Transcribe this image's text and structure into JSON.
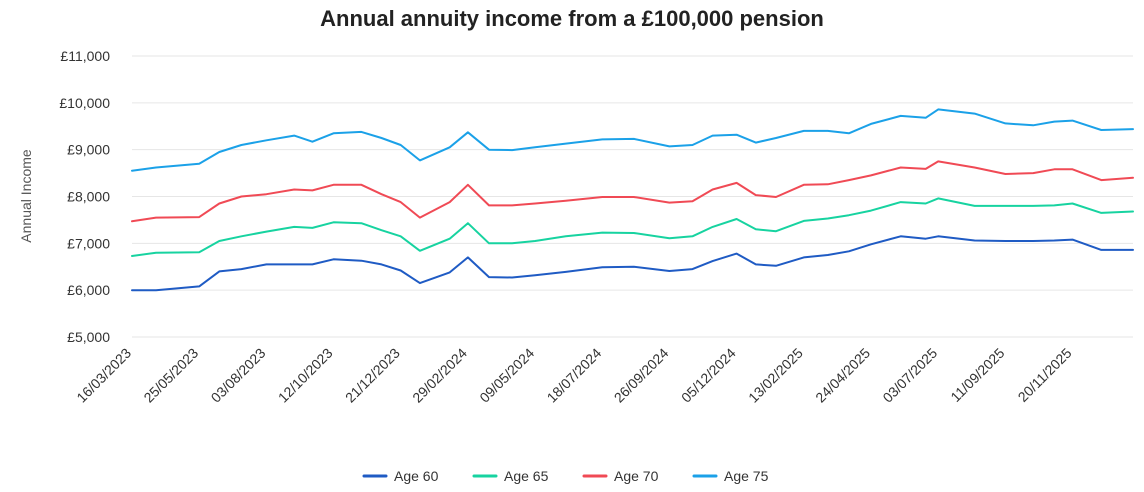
{
  "chart_data": {
    "type": "line",
    "title": "Annual annuity income from a £100,000 pension",
    "ylabel": "Annual Income",
    "xlabel": "",
    "ylim": [
      5000,
      11000
    ],
    "yticks": [
      5000,
      6000,
      7000,
      8000,
      9000,
      10000,
      11000
    ],
    "ytick_labels": [
      "£5,000",
      "£6,000",
      "£7,000",
      "£8,000",
      "£9,000",
      "£10,000",
      "£11,000"
    ],
    "xlim": [
      "2023-03-16",
      "2026-01-22"
    ],
    "xticks": [
      "2023-03-16",
      "2023-05-25",
      "2023-08-03",
      "2023-10-12",
      "2023-12-21",
      "2024-02-29",
      "2024-05-09",
      "2024-07-18",
      "2024-09-26",
      "2024-12-05",
      "2025-02-13",
      "2025-04-24",
      "2025-07-03",
      "2025-09-11",
      "2025-11-20"
    ],
    "xtick_labels": [
      "16/03/2023",
      "25/05/2023",
      "03/08/2023",
      "12/10/2023",
      "21/12/2023",
      "29/02/2024",
      "09/05/2024",
      "18/07/2024",
      "26/09/2024",
      "05/12/2024",
      "13/02/2025",
      "24/04/2025",
      "03/07/2025",
      "11/09/2025",
      "20/11/2025"
    ],
    "grid": true,
    "legend_position": "bottom",
    "x": [
      "2023-03-16",
      "2023-04-10",
      "2023-05-25",
      "2023-06-15",
      "2023-07-08",
      "2023-08-03",
      "2023-09-01",
      "2023-09-20",
      "2023-10-12",
      "2023-11-10",
      "2023-12-01",
      "2023-12-21",
      "2024-01-10",
      "2024-02-10",
      "2024-02-29",
      "2024-03-22",
      "2024-04-15",
      "2024-05-09",
      "2024-06-10",
      "2024-07-18",
      "2024-08-20",
      "2024-09-26",
      "2024-10-20",
      "2024-11-10",
      "2024-12-05",
      "2024-12-25",
      "2025-01-15",
      "2025-02-13",
      "2025-03-10",
      "2025-04-01",
      "2025-04-24",
      "2025-05-25",
      "2025-06-20",
      "2025-07-03",
      "2025-08-10",
      "2025-09-11",
      "2025-10-10",
      "2025-11-01",
      "2025-11-20",
      "2025-12-20",
      "2026-01-22"
    ],
    "series": [
      {
        "name": "Age 60",
        "color": "#1f5bc4",
        "values": [
          6000,
          6000,
          6080,
          6400,
          6450,
          6550,
          6550,
          6550,
          6660,
          6630,
          6550,
          6420,
          6150,
          6380,
          6700,
          6280,
          6270,
          6320,
          6390,
          6490,
          6500,
          6410,
          6450,
          6620,
          6780,
          6550,
          6520,
          6700,
          6750,
          6830,
          6980,
          7150,
          7100,
          7150,
          7060,
          7050,
          7050,
          7060,
          7080,
          6860,
          6860
        ]
      },
      {
        "name": "Age 65",
        "color": "#17d3a0",
        "values": [
          6730,
          6800,
          6810,
          7050,
          7150,
          7250,
          7350,
          7330,
          7450,
          7430,
          7280,
          7150,
          6840,
          7100,
          7430,
          7000,
          7000,
          7050,
          7150,
          7230,
          7220,
          7110,
          7150,
          7350,
          7520,
          7300,
          7260,
          7480,
          7530,
          7600,
          7700,
          7880,
          7850,
          7960,
          7800,
          7800,
          7800,
          7810,
          7850,
          7650,
          7680
        ]
      },
      {
        "name": "Age 70",
        "color": "#f04a55",
        "values": [
          7470,
          7550,
          7560,
          7850,
          8000,
          8050,
          8150,
          8130,
          8250,
          8250,
          8050,
          7880,
          7550,
          7880,
          8250,
          7810,
          7810,
          7850,
          7910,
          7990,
          7990,
          7870,
          7900,
          8150,
          8290,
          8030,
          7990,
          8250,
          8260,
          8350,
          8450,
          8620,
          8590,
          8750,
          8620,
          8480,
          8500,
          8580,
          8580,
          8350,
          8400
        ]
      },
      {
        "name": "Age 75",
        "color": "#1ba1e8",
        "values": [
          8550,
          8620,
          8700,
          8950,
          9100,
          9200,
          9300,
          9170,
          9350,
          9380,
          9250,
          9100,
          8770,
          9050,
          9370,
          9000,
          8990,
          9050,
          9130,
          9220,
          9230,
          9070,
          9100,
          9300,
          9320,
          9150,
          9250,
          9400,
          9400,
          9350,
          9550,
          9720,
          9680,
          9860,
          9770,
          9560,
          9520,
          9600,
          9620,
          9420,
          9440
        ]
      }
    ]
  }
}
